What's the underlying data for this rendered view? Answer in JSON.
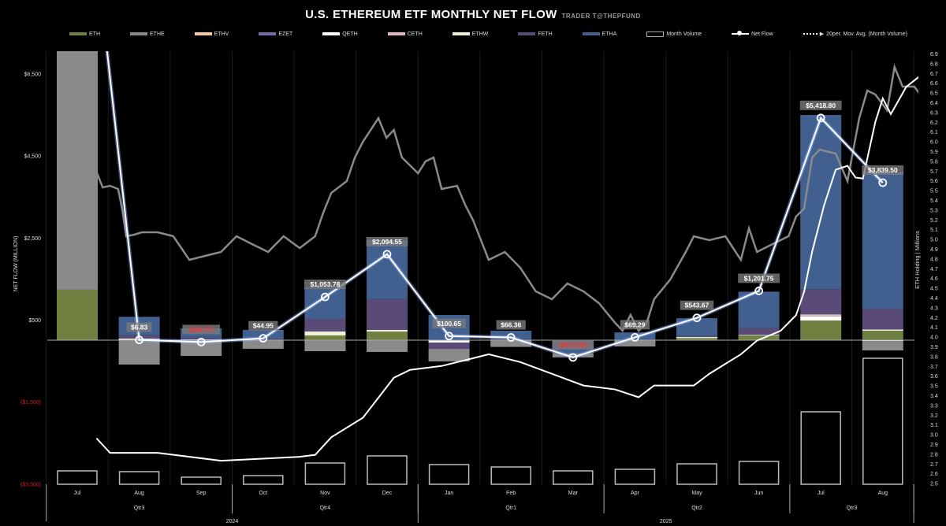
{
  "header": {
    "title": "U.S. ETHEREUM ETF MONTHLY NET FLOW",
    "subtitle": "TRADER T@THEPFUND"
  },
  "legend": [
    {
      "label": "ETH",
      "color": "#6f8040",
      "kind": "fill"
    },
    {
      "label": "ETHE",
      "color": "#8a8a8a",
      "kind": "fill"
    },
    {
      "label": "ETHV",
      "color": "#f5c9a0",
      "kind": "fill"
    },
    {
      "label": "EZET",
      "color": "#7a68a8",
      "kind": "fill"
    },
    {
      "label": "QETH",
      "color": "#ffffff",
      "kind": "fill"
    },
    {
      "label": "CETH",
      "color": "#e0b4c0",
      "kind": "fill"
    },
    {
      "label": "ETHW",
      "color": "#f0f0d8",
      "kind": "fill"
    },
    {
      "label": "FETH",
      "color": "#5a4a78",
      "kind": "fill"
    },
    {
      "label": "ETHA",
      "color": "#41608f",
      "kind": "fill"
    },
    {
      "label": "Month Volume",
      "color": "#aaaaaa",
      "kind": "box"
    },
    {
      "label": "Net Flow",
      "color": "#ffffff",
      "kind": "line"
    },
    {
      "label": "20per. Mov. Avg. (Month Volume)",
      "color": "#ffffff",
      "kind": "dots"
    }
  ],
  "chart_data": {
    "type": "bar",
    "title": "U.S. ETHEREUM ETF MONTHLY NET FLOW",
    "ylabel": "NET FLOW (MILLION)",
    "y2label": "ETH Holding | Millions",
    "ylim": [
      -3500,
      7100
    ],
    "yticks": [
      "$6,500",
      "$4,500",
      "$2,500",
      "$500",
      "($1,500)",
      "($3,500)"
    ],
    "ytick_values": [
      6500,
      4500,
      2500,
      500,
      -1500,
      -3500
    ],
    "y2lim": [
      2.5,
      6.9
    ],
    "y2ticks": [
      "2.5",
      "2.6",
      "2.7",
      "2.8",
      "2.9",
      "3.0",
      "3.1",
      "3.2",
      "3.3",
      "3.4",
      "3.5",
      "3.6",
      "3.7",
      "3.8",
      "3.9",
      "4.0",
      "4.1",
      "4.2",
      "4.3",
      "4.4",
      "4.5",
      "4.6",
      "4.7",
      "4.8",
      "4.9",
      "5.0",
      "5.1",
      "5.2",
      "5.3",
      "5.4",
      "5.5",
      "5.6",
      "5.7",
      "5.8",
      "5.9",
      "6.0",
      "6.1",
      "6.2",
      "6.3",
      "6.4",
      "6.5",
      "6.6",
      "6.7",
      "6.8",
      "6.9"
    ],
    "categories": [
      "Jul",
      "Aug",
      "Sep",
      "Oct",
      "Nov",
      "Dec",
      "Jan",
      "Feb",
      "Mar",
      "Apr",
      "May",
      "Jun",
      "Jul",
      "Aug"
    ],
    "quarters": [
      {
        "label": "Qtr3",
        "span": [
          0,
          2
        ]
      },
      {
        "label": "Qtr4",
        "span": [
          3,
          5
        ]
      },
      {
        "label": "Qtr1",
        "span": [
          6,
          8
        ]
      },
      {
        "label": "Qtr2",
        "span": [
          9,
          11
        ]
      },
      {
        "label": "Qtr3",
        "span": [
          12,
          13
        ]
      }
    ],
    "years": [
      {
        "label": "2024",
        "span": [
          0,
          5
        ]
      },
      {
        "label": "2025",
        "span": [
          6,
          13
        ]
      }
    ],
    "stack_order": [
      "ETH",
      "ETHV",
      "EZET",
      "QETH",
      "CETH",
      "ETHW",
      "FETH",
      "ETHA",
      "ETHE"
    ],
    "series": [
      {
        "name": "ETH",
        "values": [
          1230,
          10,
          0,
          0,
          115,
          211,
          0,
          0,
          0,
          0,
          50,
          110,
          480,
          230
        ]
      },
      {
        "name": "ETHE",
        "values": [
          7000,
          -595,
          -384,
          -210,
          -269,
          -288,
          -307,
          -154,
          -100,
          -154,
          0,
          0,
          0,
          -230
        ]
      },
      {
        "name": "ETHV",
        "values": [
          0,
          0,
          0,
          0,
          0,
          0,
          0,
          0,
          0,
          0,
          0,
          0,
          0,
          0
        ]
      },
      {
        "name": "EZET",
        "values": [
          0,
          0,
          0,
          0,
          0,
          0,
          0,
          0,
          0,
          0,
          0,
          0,
          0,
          0
        ]
      },
      {
        "name": "QETH",
        "values": [
          0,
          0,
          0,
          0,
          0,
          0,
          -58,
          -10,
          0,
          0,
          0,
          0,
          100,
          -20
        ]
      },
      {
        "name": "CETH",
        "values": [
          0,
          0,
          0,
          0,
          0,
          0,
          0,
          0,
          0,
          0,
          0,
          0,
          20,
          0
        ]
      },
      {
        "name": "ETHW",
        "values": [
          0,
          30,
          20,
          0,
          96,
          40,
          0,
          0,
          0,
          0,
          30,
          20,
          28,
          30
        ]
      },
      {
        "name": "FETH",
        "values": [
          0,
          80,
          40,
          30,
          307,
          749,
          -154,
          30,
          -120,
          0,
          20,
          160,
          614,
          500
        ]
      },
      {
        "name": "ETHA",
        "values": [
          0,
          450,
          230,
          220,
          768,
          1440,
          614,
          200,
          -200,
          190,
          436,
          893,
          4250,
          3340
        ]
      }
    ],
    "net_flow": {
      "values": [
        13580,
        6.83,
        -46.07,
        44.95,
        1053.78,
        2094.55,
        100.65,
        66.36,
        -419.98,
        69.29,
        543.67,
        1201.75,
        5418.8,
        3839.5
      ],
      "labels": [
        "",
        "$6.83",
        "($46.07)",
        "$44.95",
        "$1,053.78",
        "$2,094.55",
        "$100.65",
        "$66.36",
        "($419.98)",
        "$69.29",
        "$543.67",
        "$1,201.75",
        "$5,418.80",
        "$3,839.50"
      ]
    },
    "month_volume_index": [
      17,
      16,
      9,
      11,
      27,
      36,
      25,
      22,
      17,
      19,
      26,
      29,
      92,
      160
    ],
    "eth_holdings_millions": [
      [
        0.31,
        2.96
      ],
      [
        0.53,
        2.81
      ],
      [
        1.3,
        2.81
      ],
      [
        2.32,
        2.73
      ],
      [
        3.59,
        2.77
      ],
      [
        3.84,
        2.79
      ],
      [
        4.1,
        2.97
      ],
      [
        4.61,
        3.17
      ],
      [
        5.11,
        3.58
      ],
      [
        5.37,
        3.66
      ],
      [
        5.88,
        3.7
      ],
      [
        6.39,
        3.78
      ],
      [
        6.64,
        3.82
      ],
      [
        7.15,
        3.74
      ],
      [
        7.66,
        3.62
      ],
      [
        8.17,
        3.5
      ],
      [
        8.68,
        3.46
      ],
      [
        9.06,
        3.38
      ],
      [
        9.31,
        3.5
      ],
      [
        9.95,
        3.5
      ],
      [
        10.2,
        3.62
      ],
      [
        10.71,
        3.82
      ],
      [
        10.97,
        3.96
      ],
      [
        11.35,
        4.06
      ],
      [
        11.6,
        4.22
      ],
      [
        11.73,
        4.46
      ],
      [
        11.86,
        4.87
      ],
      [
        12.05,
        5.34
      ],
      [
        12.24,
        5.71
      ],
      [
        12.43,
        5.75
      ],
      [
        12.56,
        5.63
      ],
      [
        12.68,
        5.62
      ],
      [
        12.88,
        6.2
      ],
      [
        13.0,
        6.44
      ],
      [
        13.13,
        6.28
      ],
      [
        13.38,
        6.56
      ],
      [
        13.58,
        6.66
      ],
      [
        13.7,
        6.63
      ]
    ],
    "gray_trace_left_units": [
      [
        0.31,
        4109
      ],
      [
        0.41,
        3725
      ],
      [
        0.53,
        3763
      ],
      [
        0.66,
        3686
      ],
      [
        0.73,
        3149
      ],
      [
        0.79,
        2534
      ],
      [
        0.92,
        2573
      ],
      [
        1.04,
        2630
      ],
      [
        1.3,
        2630
      ],
      [
        1.55,
        2534
      ],
      [
        1.81,
        1958
      ],
      [
        2.06,
        2054
      ],
      [
        2.32,
        2150
      ],
      [
        2.57,
        2534
      ],
      [
        2.82,
        2342
      ],
      [
        3.08,
        2150
      ],
      [
        3.33,
        2534
      ],
      [
        3.59,
        2246
      ],
      [
        3.84,
        2534
      ],
      [
        3.97,
        3110
      ],
      [
        4.1,
        3590
      ],
      [
        4.35,
        3878
      ],
      [
        4.48,
        4454
      ],
      [
        4.61,
        4838
      ],
      [
        4.86,
        5414
      ],
      [
        4.99,
        4934
      ],
      [
        5.11,
        5126
      ],
      [
        5.24,
        4454
      ],
      [
        5.5,
        4070
      ],
      [
        5.62,
        4358
      ],
      [
        5.75,
        4454
      ],
      [
        5.88,
        3686
      ],
      [
        6.13,
        3763
      ],
      [
        6.26,
        3302
      ],
      [
        6.39,
        2918
      ],
      [
        6.64,
        1958
      ],
      [
        6.9,
        2150
      ],
      [
        7.15,
        1766
      ],
      [
        7.4,
        1190
      ],
      [
        7.66,
        998
      ],
      [
        7.91,
        1382
      ],
      [
        8.17,
        1190
      ],
      [
        8.42,
        902
      ],
      [
        8.68,
        422
      ],
      [
        8.8,
        230
      ],
      [
        8.93,
        614
      ],
      [
        9.06,
        230
      ],
      [
        9.19,
        422
      ],
      [
        9.31,
        998
      ],
      [
        9.57,
        1478
      ],
      [
        9.82,
        2150
      ],
      [
        9.95,
        2534
      ],
      [
        10.2,
        2438
      ],
      [
        10.46,
        2534
      ],
      [
        10.71,
        1958
      ],
      [
        10.84,
        2726
      ],
      [
        10.97,
        2150
      ],
      [
        11.22,
        2342
      ],
      [
        11.48,
        2534
      ],
      [
        11.6,
        3014
      ],
      [
        11.73,
        3206
      ],
      [
        11.86,
        4454
      ],
      [
        11.98,
        4646
      ],
      [
        12.24,
        4550
      ],
      [
        12.43,
        3878
      ],
      [
        12.62,
        5414
      ],
      [
        12.75,
        6086
      ],
      [
        12.88,
        5990
      ],
      [
        13.07,
        5606
      ],
      [
        13.19,
        6662
      ],
      [
        13.32,
        6182
      ],
      [
        13.51,
        6182
      ],
      [
        13.7,
        5798
      ]
    ]
  }
}
